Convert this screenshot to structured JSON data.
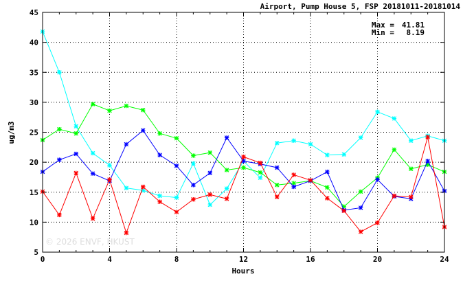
{
  "chart_data": {
    "type": "line",
    "title": "Airport, Pump House 5, FSP 20181011-20181014",
    "xlabel": "Hours",
    "ylabel": "ug/m3",
    "xlim": [
      0,
      24
    ],
    "ylim": [
      5,
      45
    ],
    "x_ticks": [
      0,
      4,
      8,
      12,
      16,
      20,
      24
    ],
    "y_ticks": [
      5,
      10,
      15,
      20,
      25,
      30,
      35,
      40,
      45
    ],
    "grid": true,
    "stats": {
      "max_label": "Max =",
      "max_value": "41.81",
      "min_label": "Min =",
      "min_value": "8.19"
    },
    "watermark": "© 2026  ENVF, HKUST",
    "x": [
      0,
      1,
      2,
      3,
      4,
      5,
      6,
      7,
      8,
      9,
      10,
      11,
      12,
      13,
      14,
      15,
      16,
      17,
      18,
      19,
      20,
      21,
      22,
      23,
      24
    ],
    "series": [
      {
        "color": "#00ffff",
        "marker": "x",
        "values": [
          41.8,
          35.0,
          26.0,
          21.5,
          19.5,
          15.7,
          15.3,
          14.4,
          14.1,
          19.8,
          12.9,
          15.6,
          20.2,
          17.4,
          23.2,
          23.6,
          23.0,
          21.2,
          21.3,
          24.1,
          28.4,
          27.3,
          23.6,
          24.4,
          23.6
        ]
      },
      {
        "color": "#00ff00",
        "marker": "x",
        "values": [
          23.7,
          25.5,
          24.8,
          29.7,
          28.6,
          29.4,
          28.7,
          24.8,
          24.0,
          21.1,
          21.6,
          18.7,
          19.1,
          18.3,
          16.2,
          16.5,
          16.9,
          15.8,
          12.6,
          15.1,
          17.4,
          22.1,
          18.9,
          19.6,
          18.4
        ]
      },
      {
        "color": "#0000ff",
        "marker": "x",
        "values": [
          18.4,
          20.4,
          21.4,
          18.1,
          16.9,
          23.0,
          25.3,
          21.2,
          19.4,
          16.2,
          18.2,
          24.1,
          20.2,
          19.7,
          19.1,
          15.9,
          16.9,
          18.4,
          12.0,
          12.4,
          17.1,
          14.3,
          13.9,
          20.2,
          15.2
        ]
      },
      {
        "color": "#ff0000",
        "marker": "x",
        "values": [
          15.1,
          11.2,
          18.2,
          10.6,
          17.1,
          8.2,
          15.9,
          13.4,
          11.7,
          13.8,
          14.6,
          13.9,
          20.9,
          19.9,
          14.2,
          17.9,
          17.0,
          14.0,
          11.9,
          8.4,
          9.9,
          14.4,
          14.2,
          24.2,
          9.2
        ]
      }
    ]
  }
}
